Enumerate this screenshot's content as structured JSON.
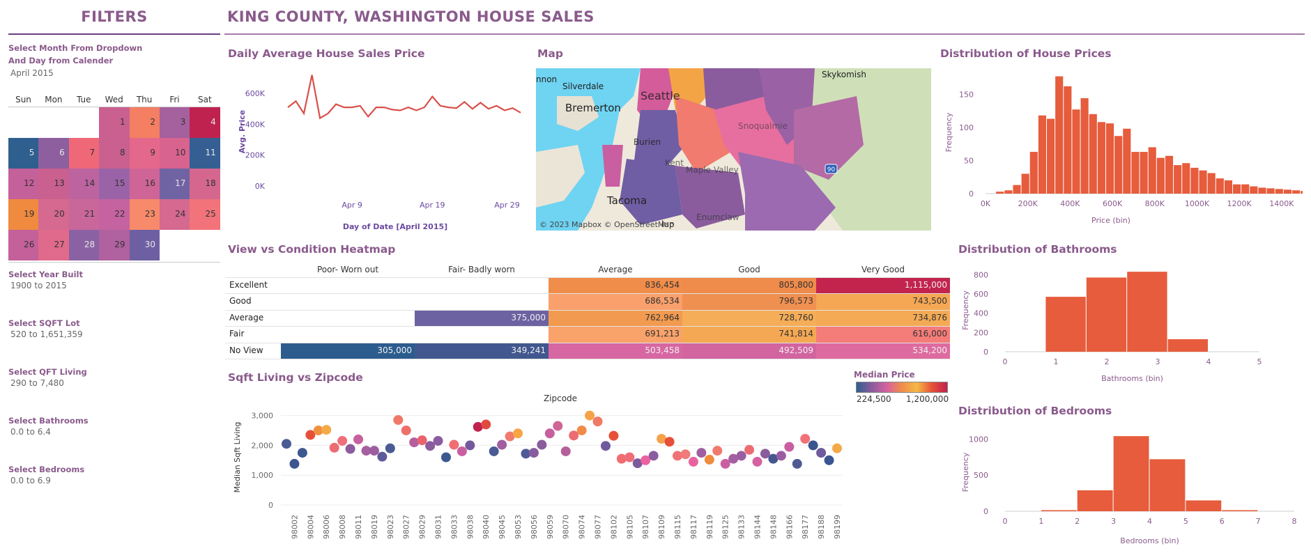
{
  "filters": {
    "title": "FILTERS",
    "calendar_label_line1": "Select Month From Dropdown",
    "calendar_label_line2": "And Day from Calender",
    "month_value": "April 2015",
    "weekdays": [
      "Sun",
      "Mon",
      "Tue",
      "Wed",
      "Thu",
      "Fri",
      "Sat"
    ],
    "days": [
      {
        "d": "1",
        "col": 3,
        "row": 0,
        "color": "#c9608f"
      },
      {
        "d": "2",
        "col": 4,
        "row": 0,
        "color": "#f47f62"
      },
      {
        "d": "3",
        "col": 5,
        "row": 0,
        "color": "#a5609e"
      },
      {
        "d": "4",
        "col": 6,
        "row": 0,
        "color": "#c0224f"
      },
      {
        "d": "5",
        "col": 0,
        "row": 1,
        "color": "#2f5f8f"
      },
      {
        "d": "6",
        "col": 1,
        "row": 1,
        "color": "#8e5f9f"
      },
      {
        "d": "7",
        "col": 2,
        "row": 1,
        "color": "#ee6878"
      },
      {
        "d": "8",
        "col": 3,
        "row": 1,
        "color": "#c9608f"
      },
      {
        "d": "9",
        "col": 4,
        "row": 1,
        "color": "#e4688b"
      },
      {
        "d": "10",
        "col": 5,
        "row": 1,
        "color": "#d8638f"
      },
      {
        "d": "11",
        "col": 6,
        "row": 1,
        "color": "#355f93"
      },
      {
        "d": "12",
        "col": 0,
        "row": 2,
        "color": "#c4609a"
      },
      {
        "d": "13",
        "col": 1,
        "row": 2,
        "color": "#c9608f"
      },
      {
        "d": "14",
        "col": 2,
        "row": 2,
        "color": "#bc63a0"
      },
      {
        "d": "15",
        "col": 3,
        "row": 2,
        "color": "#9b63a7"
      },
      {
        "d": "16",
        "col": 4,
        "row": 2,
        "color": "#cf6596"
      },
      {
        "d": "17",
        "col": 5,
        "row": 2,
        "color": "#6f63a3"
      },
      {
        "d": "18",
        "col": 6,
        "row": 2,
        "color": "#d5678e"
      },
      {
        "d": "19",
        "col": 0,
        "row": 3,
        "color": "#ef8a3f"
      },
      {
        "d": "20",
        "col": 1,
        "row": 3,
        "color": "#d5698f"
      },
      {
        "d": "21",
        "col": 2,
        "row": 3,
        "color": "#c9679a"
      },
      {
        "d": "22",
        "col": 3,
        "row": 3,
        "color": "#c562a0"
      },
      {
        "d": "23",
        "col": 4,
        "row": 3,
        "color": "#f68a6a"
      },
      {
        "d": "24",
        "col": 5,
        "row": 3,
        "color": "#d5698f"
      },
      {
        "d": "25",
        "col": 6,
        "row": 3,
        "color": "#f2737a"
      },
      {
        "d": "26",
        "col": 0,
        "row": 4,
        "color": "#c4609a"
      },
      {
        "d": "27",
        "col": 1,
        "row": 4,
        "color": "#e06a8b"
      },
      {
        "d": "28",
        "col": 2,
        "row": 4,
        "color": "#8a62a4"
      },
      {
        "d": "29",
        "col": 3,
        "row": 4,
        "color": "#b0619f"
      },
      {
        "d": "30",
        "col": 4,
        "row": 4,
        "color": "#6e5fa3"
      }
    ],
    "year_label": "Select Year Built",
    "year_value": "1900 to 2015",
    "lot_label": "Select SQFT Lot",
    "lot_value": "520 to 1,651,359",
    "living_label": "Select QFT Living",
    "living_value": "290 to 7,480",
    "bath_label": "Select Bathrooms",
    "bath_value": "0.0 to 6.4",
    "bed_label": "Select Bedrooms",
    "bed_value": "0.0 to 6.9"
  },
  "header": {
    "title": "KING COUNTY, WASHINGTON HOUSE SALES"
  },
  "sections": {
    "daily": "Daily Average House Sales Price",
    "map": "Map",
    "price_dist": "Distribution of House Prices",
    "heatmap": "View vs Condition Heatmap",
    "zip": "Sqft Living vs Zipcode",
    "bath_dist": "Distribution of Bathrooms",
    "bed_dist": "Distribution of Bedrooms"
  },
  "map": {
    "credit": "© 2023 Mapbox © OpenStreetMap",
    "places": [
      "Silverdale",
      "Bremerton",
      "Tacoma",
      "Skykomish",
      "Seattle",
      "Kent",
      "Maple Valley",
      "Enumclaw",
      "Snoqualmie",
      "Burien",
      "nnon",
      "lup"
    ],
    "highway": "90"
  },
  "legend": {
    "title": "Median Price",
    "min": "224,500",
    "max": "1,200,000"
  },
  "heatmap": {
    "columns": [
      "Poor- Worn out",
      "Fair- Badly worn",
      "Average",
      "Good",
      "Very Good"
    ],
    "rows": [
      {
        "label": "Excellent",
        "cells": [
          null,
          null,
          {
            "v": "836,454",
            "c": "#f08d4a"
          },
          {
            "v": "805,800",
            "c": "#ef8b4b"
          },
          {
            "v": "1,115,000",
            "c": "#c2244e"
          }
        ]
      },
      {
        "label": "Good",
        "cells": [
          null,
          null,
          {
            "v": "686,534",
            "c": "#f9a06c"
          },
          {
            "v": "796,573",
            "c": "#f09050"
          },
          {
            "v": "743,500",
            "c": "#f5a753"
          }
        ]
      },
      {
        "label": "Average",
        "cells": [
          null,
          {
            "v": "375,000",
            "c": "#6c62a1"
          },
          {
            "v": "762,964",
            "c": "#f29a4f"
          },
          {
            "v": "728,760",
            "c": "#f5ad58"
          },
          {
            "v": "734,876",
            "c": "#f4aa55"
          }
        ]
      },
      {
        "label": "Fair",
        "cells": [
          null,
          null,
          {
            "v": "691,213",
            "c": "#f9a26a"
          },
          {
            "v": "741,814",
            "c": "#f5a853"
          },
          {
            "v": "616,000",
            "c": "#f47c79"
          }
        ]
      },
      {
        "label": "No View",
        "cells": [
          {
            "v": "305,000",
            "c": "#2c5c8e"
          },
          {
            "v": "349,241",
            "c": "#41578e"
          },
          {
            "v": "503,458",
            "c": "#d767a2"
          },
          {
            "v": "492,509",
            "c": "#d264a0"
          },
          {
            "v": "534,200",
            "c": "#de6ba0"
          }
        ]
      }
    ]
  },
  "chart_data": [
    {
      "type": "line",
      "title": "Daily Average House Sales Price",
      "xlabel": "Day of Date [April 2015]",
      "ylabel": "Avg. Price",
      "x_ticks": [
        "Apr 9",
        "Apr 19",
        "Apr 29"
      ],
      "y_ticks": [
        "0K",
        "200K",
        "400K",
        "600K"
      ],
      "ylim": [
        0,
        700000
      ],
      "x": [
        "Apr 1",
        "Apr 2",
        "Apr 3",
        "Apr 4",
        "Apr 5",
        "Apr 6",
        "Apr 7",
        "Apr 8",
        "Apr 9",
        "Apr 10",
        "Apr 11",
        "Apr 12",
        "Apr 13",
        "Apr 14",
        "Apr 15",
        "Apr 16",
        "Apr 17",
        "Apr 18",
        "Apr 19",
        "Apr 20",
        "Apr 21",
        "Apr 22",
        "Apr 23",
        "Apr 24",
        "Apr 25",
        "Apr 26",
        "Apr 27",
        "Apr 28",
        "Apr 29",
        "Apr 30"
      ],
      "values": [
        510000,
        550000,
        470000,
        720000,
        440000,
        470000,
        530000,
        510000,
        510000,
        520000,
        450000,
        510000,
        510000,
        495000,
        490000,
        510000,
        490000,
        510000,
        580000,
        520000,
        510000,
        505000,
        545000,
        500000,
        540000,
        500000,
        520000,
        490000,
        505000,
        475000
      ],
      "color": "#d9504a"
    },
    {
      "type": "bar",
      "title": "Distribution of House Prices",
      "xlabel": "Price (bin)",
      "ylabel": "Frequency",
      "x_ticks": [
        "0K",
        "200K",
        "400K",
        "600K",
        "800K",
        "1000K",
        "1200K",
        "1400K"
      ],
      "y_ticks": [
        "0",
        "50",
        "100",
        "150"
      ],
      "bin_start": 50000,
      "bin_width": 40000,
      "values": [
        3,
        5,
        13,
        30,
        63,
        118,
        113,
        177,
        162,
        127,
        144,
        120,
        108,
        106,
        87,
        98,
        63,
        63,
        70,
        54,
        57,
        43,
        46,
        39,
        35,
        31,
        23,
        20,
        14,
        14,
        11,
        9,
        8,
        7,
        6,
        5,
        4,
        3,
        5,
        8,
        3,
        2
      ],
      "ylim": [
        0,
        185
      ],
      "color": "#e65c3c"
    },
    {
      "type": "bar",
      "title": "Distribution of Bathrooms",
      "xlabel": "Bathrooms (bin)",
      "ylabel": "Frequency",
      "x_ticks": [
        "0",
        "1",
        "2",
        "3",
        "4",
        "5"
      ],
      "y_ticks": [
        "0",
        "200",
        "400",
        "600",
        "800"
      ],
      "bin_edges": [
        0.8,
        1.6,
        2.4,
        3.2,
        4.0
      ],
      "values": [
        570,
        770,
        830,
        130
      ],
      "ylim": [
        0,
        860
      ],
      "color": "#e65c3c"
    },
    {
      "type": "bar",
      "title": "Distribution of Bedrooms",
      "xlabel": "Bedrooms (bin)",
      "ylabel": "Frequency",
      "x_ticks": [
        "0",
        "1",
        "2",
        "3",
        "4",
        "5",
        "6",
        "7",
        "8"
      ],
      "y_ticks": [
        "0",
        "500",
        "1000"
      ],
      "bin_edges": [
        1,
        2,
        3,
        4,
        5,
        6,
        7
      ],
      "values": [
        15,
        290,
        1040,
        720,
        150,
        15
      ],
      "ylim": [
        0,
        1080
      ],
      "color": "#e65c3c"
    },
    {
      "type": "scatter",
      "title": "Sqft Living vs Zipcode",
      "xlabel": "Zipcode",
      "ylabel": "Median Sqft Living",
      "y_ticks": [
        "0",
        "1,000",
        "2,000",
        "3,000"
      ],
      "ylim": [
        0,
        3200
      ],
      "x_labels": [
        "98002",
        "98004",
        "98006",
        "98008",
        "98011",
        "98019",
        "98023",
        "98027",
        "98029",
        "98031",
        "98033",
        "98038",
        "98040",
        "98045",
        "98053",
        "98056",
        "98059",
        "98070",
        "98074",
        "98077",
        "98102",
        "98105",
        "98107",
        "98109",
        "98115",
        "98117",
        "98119",
        "98125",
        "98133",
        "98144",
        "98148",
        "98166",
        "98177",
        "98188",
        "98199"
      ],
      "points": [
        {
          "zip": "98001",
          "y": 2050,
          "c": "#4a5b93"
        },
        {
          "zip": "98002",
          "y": 1380,
          "c": "#3a5590"
        },
        {
          "zip": "98003",
          "y": 1750,
          "c": "#3d5890"
        },
        {
          "zip": "98004",
          "y": 2350,
          "c": "#e65039"
        },
        {
          "zip": "98005",
          "y": 2500,
          "c": "#f0913f"
        },
        {
          "zip": "98006",
          "y": 2520,
          "c": "#f5aa48"
        },
        {
          "zip": "98007",
          "y": 1920,
          "c": "#ec6c74"
        },
        {
          "zip": "98008",
          "y": 2150,
          "c": "#ee6f7a"
        },
        {
          "zip": "98010",
          "y": 1880,
          "c": "#8a5c9d"
        },
        {
          "zip": "98011",
          "y": 2200,
          "c": "#c7609f"
        },
        {
          "zip": "98014",
          "y": 1820,
          "c": "#a45fa0"
        },
        {
          "zip": "98019",
          "y": 1820,
          "c": "#9d5ea1"
        },
        {
          "zip": "98022",
          "y": 1620,
          "c": "#5e5b9a"
        },
        {
          "zip": "98023",
          "y": 1900,
          "c": "#4a5b93"
        },
        {
          "zip": "98024",
          "y": 2850,
          "c": "#f07868"
        },
        {
          "zip": "98027",
          "y": 2500,
          "c": "#ef6f6b"
        },
        {
          "zip": "98028",
          "y": 2100,
          "c": "#b55f9c"
        },
        {
          "zip": "98029",
          "y": 2170,
          "c": "#e9636d"
        },
        {
          "zip": "98030",
          "y": 1980,
          "c": "#8a5c9d"
        },
        {
          "zip": "98031",
          "y": 2150,
          "c": "#8d5b9f"
        },
        {
          "zip": "98032",
          "y": 1600,
          "c": "#3d5890"
        },
        {
          "zip": "98033",
          "y": 2020,
          "c": "#f06d71"
        },
        {
          "zip": "98034",
          "y": 1800,
          "c": "#c95fa0"
        },
        {
          "zip": "98038",
          "y": 2000,
          "c": "#73599c"
        },
        {
          "zip": "98039",
          "y": 2620,
          "c": "#c0224f"
        },
        {
          "zip": "98040",
          "y": 2700,
          "c": "#e14b3f"
        },
        {
          "zip": "98042",
          "y": 1800,
          "c": "#4a5b93"
        },
        {
          "zip": "98045",
          "y": 2020,
          "c": "#a05fa0"
        },
        {
          "zip": "98052",
          "y": 2300,
          "c": "#f07a6e"
        },
        {
          "zip": "98053",
          "y": 2400,
          "c": "#f8a546"
        },
        {
          "zip": "98055",
          "y": 1720,
          "c": "#4f5a95"
        },
        {
          "zip": "98056",
          "y": 1750,
          "c": "#875c9f"
        },
        {
          "zip": "98058",
          "y": 2020,
          "c": "#8a5c9d"
        },
        {
          "zip": "98059",
          "y": 2400,
          "c": "#c7609f"
        },
        {
          "zip": "98065",
          "y": 2650,
          "c": "#cf6499"
        },
        {
          "zip": "98070",
          "y": 1800,
          "c": "#b55f9c"
        },
        {
          "zip": "98072",
          "y": 2330,
          "c": "#ec6c74"
        },
        {
          "zip": "98074",
          "y": 2500,
          "c": "#f08c4a"
        },
        {
          "zip": "98075",
          "y": 3000,
          "c": "#f5a24a"
        },
        {
          "zip": "98077",
          "y": 2800,
          "c": "#ef7a66"
        },
        {
          "zip": "98092",
          "y": 1980,
          "c": "#6e5a9c"
        },
        {
          "zip": "98102",
          "y": 2320,
          "c": "#e65039"
        },
        {
          "zip": "98103",
          "y": 1550,
          "c": "#f06d71"
        },
        {
          "zip": "98105",
          "y": 1600,
          "c": "#ef6d7a"
        },
        {
          "zip": "98106",
          "y": 1400,
          "c": "#7d5a9c"
        },
        {
          "zip": "98107",
          "y": 1500,
          "c": "#ec62a0"
        },
        {
          "zip": "98108",
          "y": 1650,
          "c": "#8b5c9f"
        },
        {
          "zip": "98109",
          "y": 2220,
          "c": "#f5a24a"
        },
        {
          "zip": "98112",
          "y": 2120,
          "c": "#e65039"
        },
        {
          "zip": "98115",
          "y": 1650,
          "c": "#f07276"
        },
        {
          "zip": "98116",
          "y": 1700,
          "c": "#f07b7a"
        },
        {
          "zip": "98117",
          "y": 1450,
          "c": "#e962a0"
        },
        {
          "zip": "98118",
          "y": 1750,
          "c": "#a05fa0"
        },
        {
          "zip": "98119",
          "y": 1520,
          "c": "#f08c3c"
        },
        {
          "zip": "98122",
          "y": 1820,
          "c": "#f07a6e"
        },
        {
          "zip": "98125",
          "y": 1380,
          "c": "#c95fa0"
        },
        {
          "zip": "98126",
          "y": 1550,
          "c": "#a45fa0"
        },
        {
          "zip": "98133",
          "y": 1650,
          "c": "#9b5da1"
        },
        {
          "zip": "98136",
          "y": 1850,
          "c": "#ec6c74"
        },
        {
          "zip": "98144",
          "y": 1450,
          "c": "#d562a0"
        },
        {
          "zip": "98146",
          "y": 1720,
          "c": "#8a5c9d"
        },
        {
          "zip": "98148",
          "y": 1550,
          "c": "#45578e"
        },
        {
          "zip": "98155",
          "y": 1650,
          "c": "#9b5da1"
        },
        {
          "zip": "98166",
          "y": 1950,
          "c": "#c95fa0"
        },
        {
          "zip": "98168",
          "y": 1380,
          "c": "#4f5a95"
        },
        {
          "zip": "98177",
          "y": 2220,
          "c": "#f07276"
        },
        {
          "zip": "98178",
          "y": 2000,
          "c": "#3a5590"
        },
        {
          "zip": "98188",
          "y": 1750,
          "c": "#6e5a9c"
        },
        {
          "zip": "98198",
          "y": 1500,
          "c": "#3a5590"
        },
        {
          "zip": "98199",
          "y": 1900,
          "c": "#f5aa48"
        }
      ]
    }
  ]
}
